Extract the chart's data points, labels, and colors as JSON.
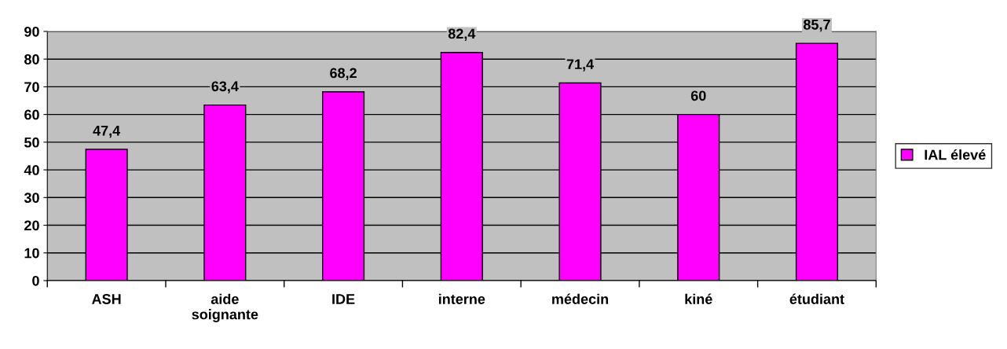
{
  "chart_data": {
    "type": "bar",
    "categories": [
      "ASH",
      "aide\nsoignante",
      "IDE",
      "interne",
      "médecin",
      "kiné",
      "étudiant"
    ],
    "series": [
      {
        "name": "IAL élevé",
        "color": "#ff00ff",
        "values": [
          47.4,
          63.4,
          68.2,
          82.4,
          71.4,
          60,
          85.7
        ],
        "value_labels": [
          "47,4",
          "63,4",
          "68,2",
          "82,4",
          "71,4",
          "60",
          "85,7"
        ]
      }
    ],
    "ylim": [
      0,
      90
    ],
    "yticks": [
      0,
      10,
      20,
      30,
      40,
      50,
      60,
      70,
      80,
      90
    ],
    "grid": "y",
    "legend": "right"
  }
}
